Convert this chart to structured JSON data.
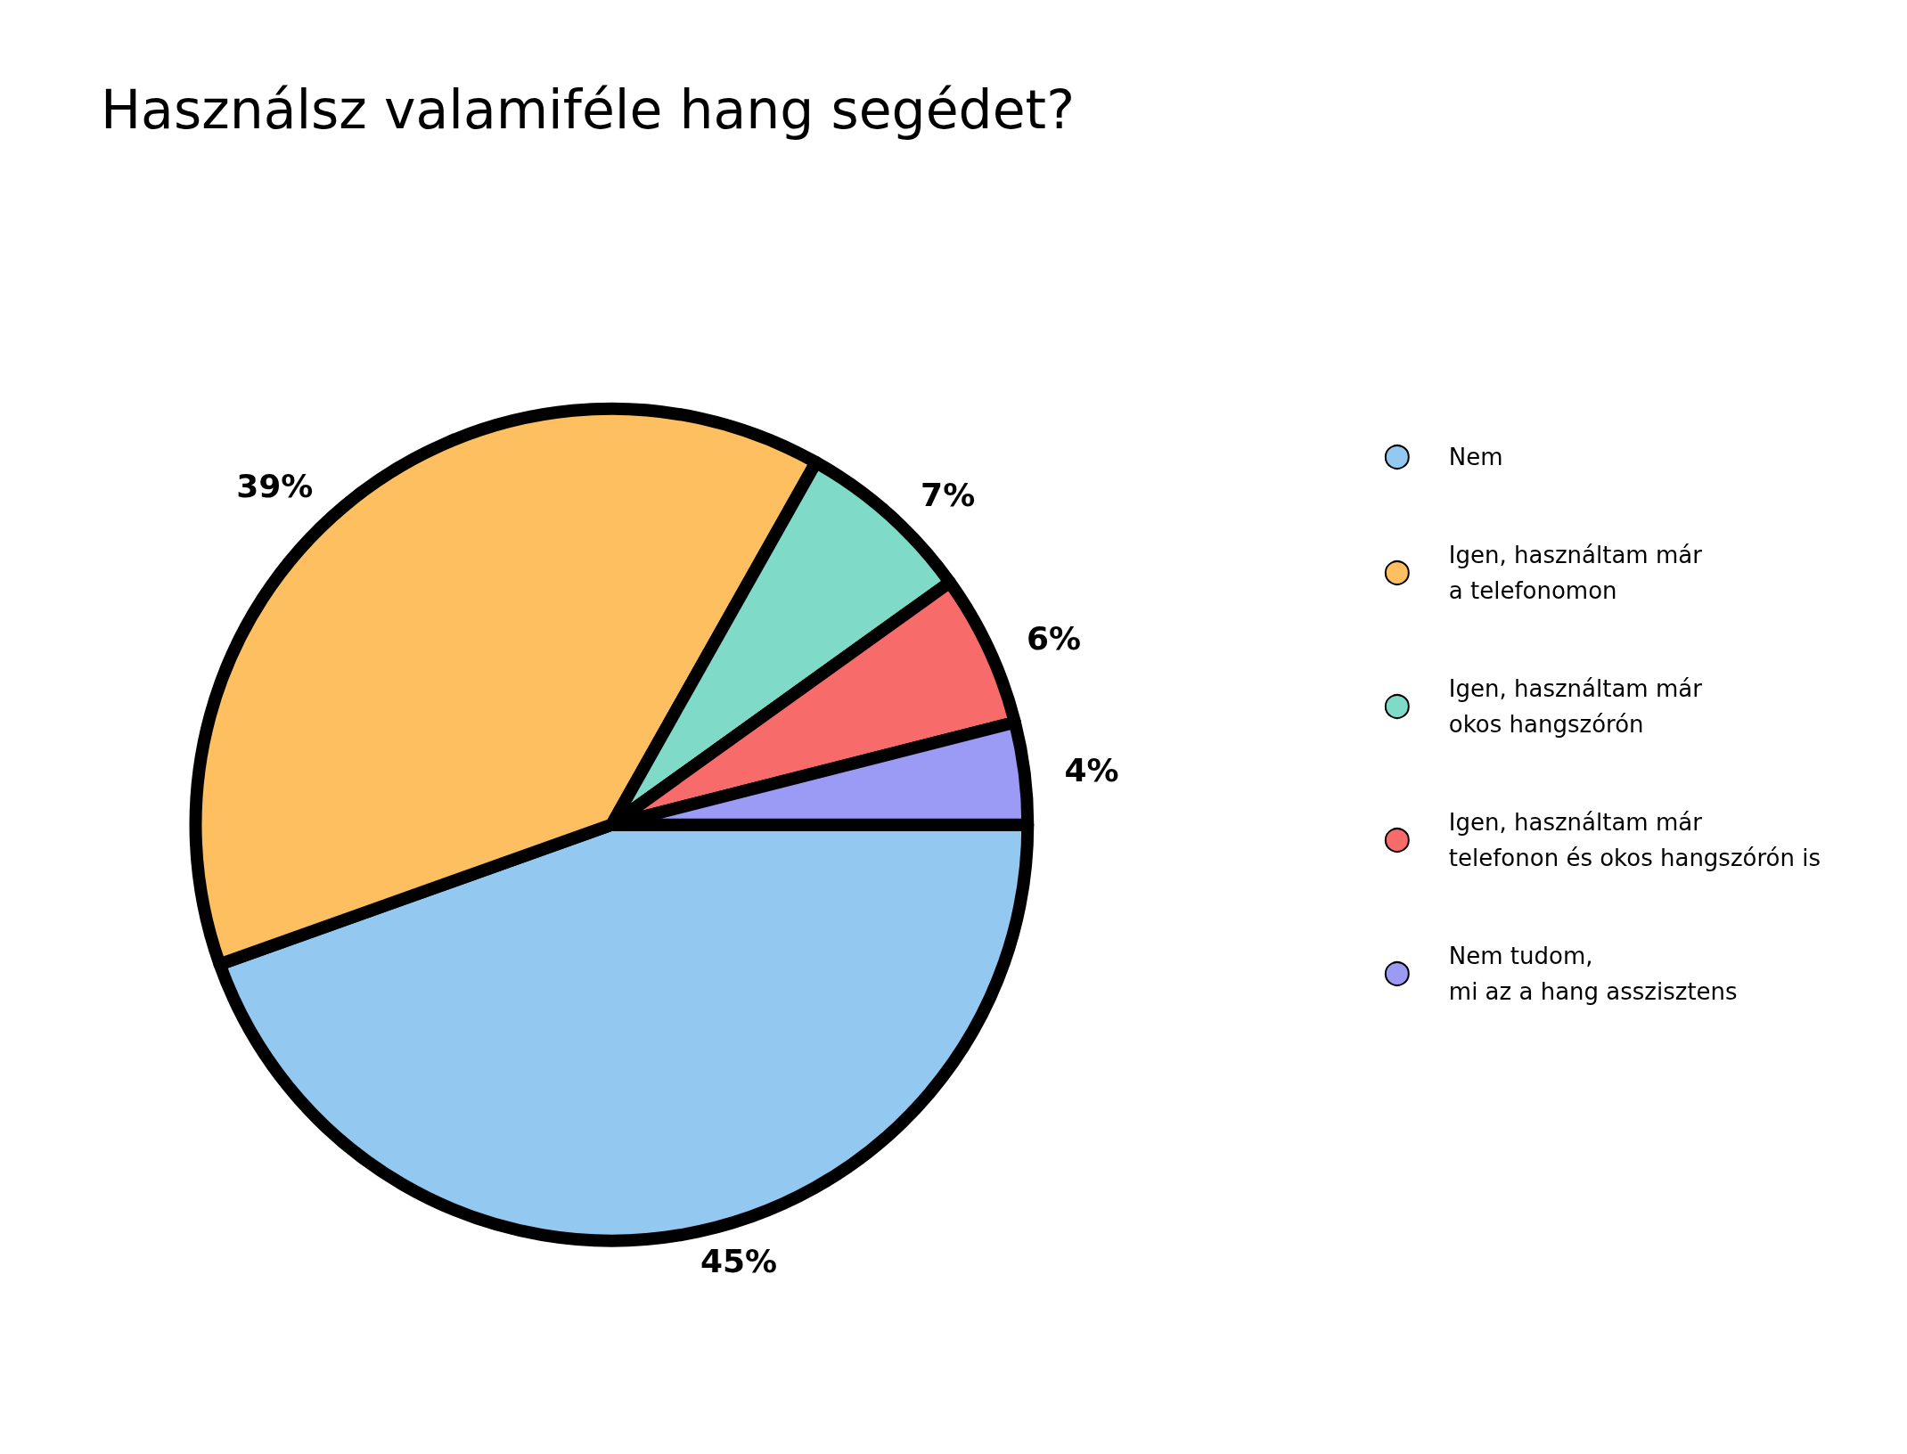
{
  "chart_data": {
    "type": "pie",
    "title": "Használsz valamiféle hang segédet?",
    "categories": [
      "Nem",
      "Igen, használtam már\na telefonomon",
      "Igen, használtam már\nokos hangszórón",
      "Igen, használtam már\ntelefonon és okos hangszórón is",
      "Nem tudom,\nmi az a hang asszisztens"
    ],
    "values": [
      45,
      39,
      7,
      6,
      4
    ],
    "value_labels": [
      "45%",
      "39%",
      "7%",
      "6%",
      "4%"
    ],
    "colors": [
      "#93c8f1",
      "#fdbf5f",
      "#7fdbc8",
      "#f76b6b",
      "#9b9bf5"
    ],
    "legend": "right"
  }
}
